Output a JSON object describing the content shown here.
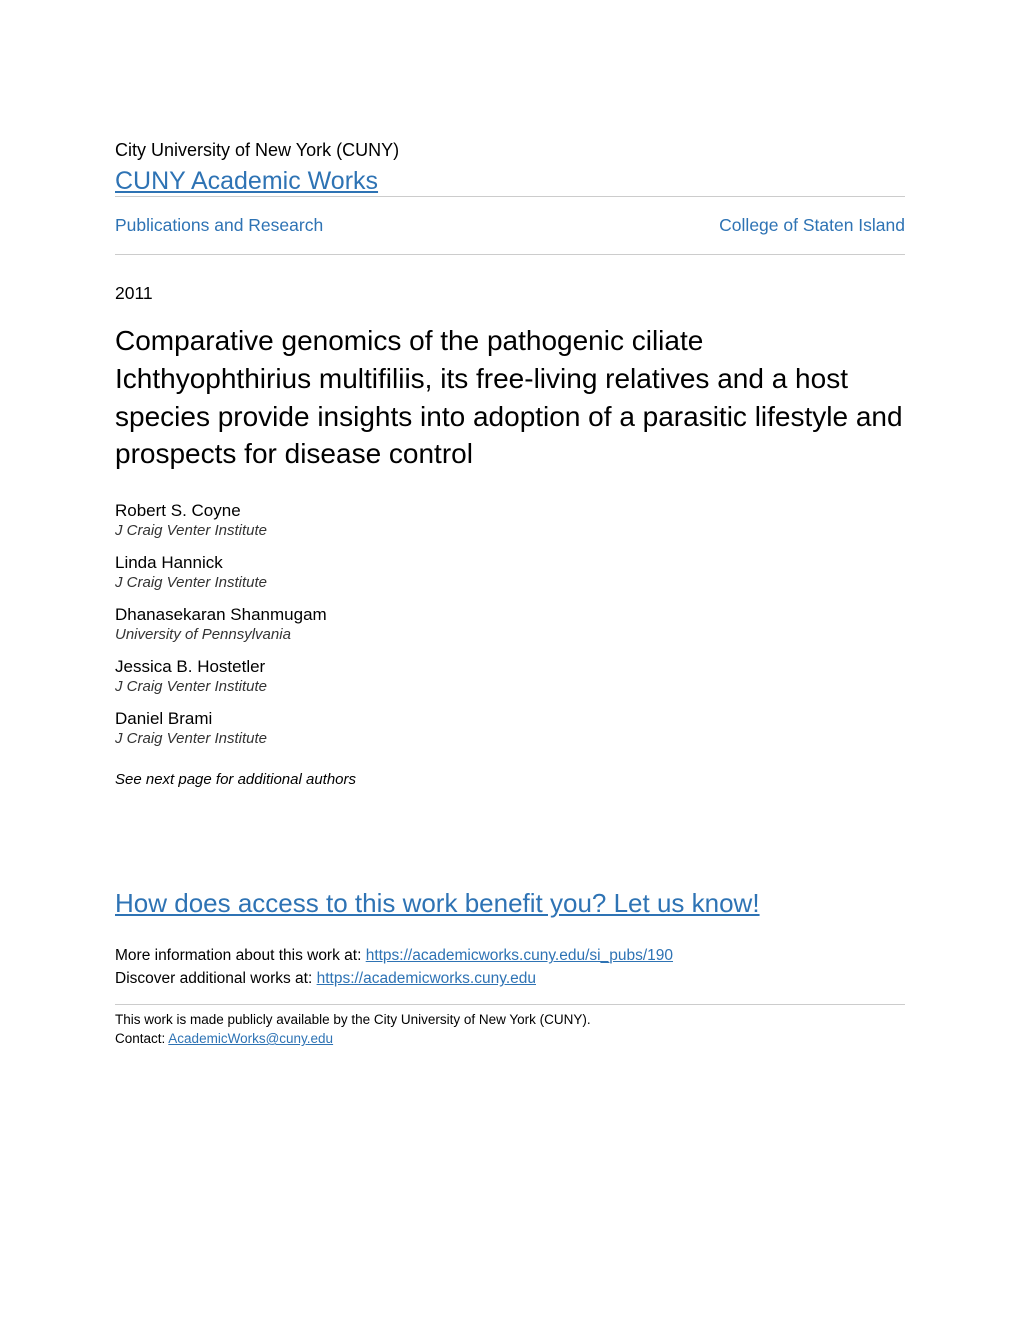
{
  "header": {
    "institution": "City University of New York (CUNY)",
    "repository": "CUNY Academic Works"
  },
  "nav": {
    "left": "Publications and Research",
    "right": "College of Staten Island"
  },
  "publication": {
    "year": "2011",
    "title": "Comparative genomics of the pathogenic ciliate Ichthyophthirius multifiliis, its free-living relatives and a host species provide insights into adoption of a parasitic lifestyle and prospects for disease control"
  },
  "authors": [
    {
      "name": "Robert S. Coyne",
      "affiliation": "J Craig Venter Institute"
    },
    {
      "name": "Linda Hannick",
      "affiliation": "J Craig Venter Institute"
    },
    {
      "name": "Dhanasekaran Shanmugam",
      "affiliation": "University of Pennsylvania"
    },
    {
      "name": "Jessica B. Hostetler",
      "affiliation": "J Craig Venter Institute"
    },
    {
      "name": "Daniel Brami",
      "affiliation": "J Craig Venter Institute"
    }
  ],
  "additional_authors_note": "See next page for additional authors",
  "benefit_link": "How does access to this work benefit you? Let us know!",
  "more_info": {
    "prefix": "More information about this work at: ",
    "url": "https://academicworks.cuny.edu/si_pubs/190"
  },
  "discover": {
    "prefix": "Discover additional works at: ",
    "url": "https://academicworks.cuny.edu"
  },
  "footer": {
    "availability": "This work is made publicly available by the City University of New York (CUNY).",
    "contact_prefix": "Contact: ",
    "contact_email": "AcademicWorks@cuny.edu"
  },
  "colors": {
    "link": "#2e73b4",
    "text": "#000000",
    "divider": "#cccccc",
    "background": "#ffffff"
  }
}
